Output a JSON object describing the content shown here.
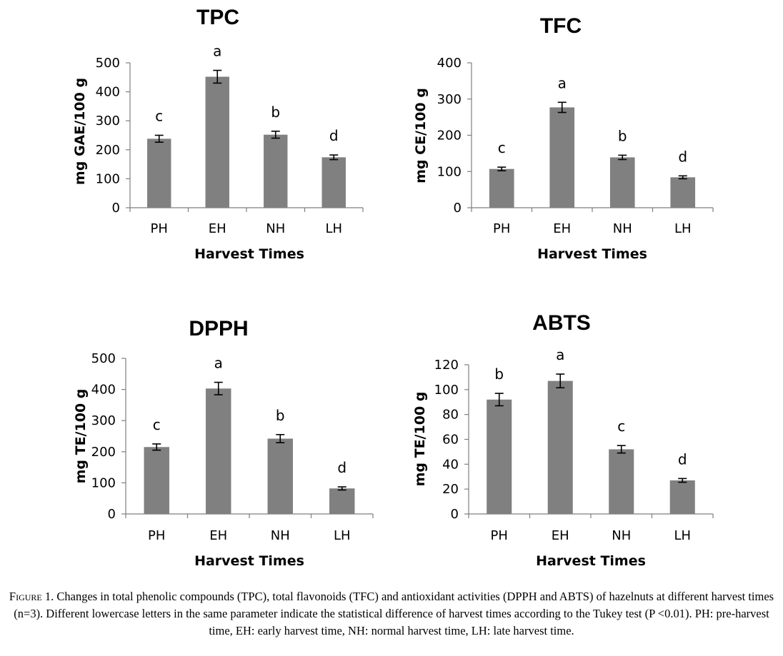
{
  "chart_data": [
    {
      "type": "bar",
      "title": "TPC",
      "xlabel": "Harvest Times",
      "ylabel": "mg GAE/100 g",
      "categories": [
        "PH",
        "EH",
        "NH",
        "LH"
      ],
      "values": [
        238,
        452,
        252,
        174
      ],
      "errors": [
        12,
        22,
        12,
        8
      ],
      "letters": [
        "c",
        "a",
        "b",
        "d"
      ],
      "ylim": [
        0,
        500
      ],
      "yticks": [
        0,
        100,
        200,
        300,
        400,
        500
      ]
    },
    {
      "type": "bar",
      "title": "TFC",
      "xlabel": "Harvest Times",
      "ylabel": "mg CE/100 g",
      "categories": [
        "PH",
        "EH",
        "NH",
        "LH"
      ],
      "values": [
        107,
        277,
        139,
        84
      ],
      "errors": [
        5,
        14,
        6,
        4
      ],
      "letters": [
        "c",
        "a",
        "b",
        "d"
      ],
      "ylim": [
        0,
        400
      ],
      "yticks": [
        0,
        100,
        200,
        300,
        400
      ]
    },
    {
      "type": "bar",
      "title": "DPPH",
      "xlabel": "Harvest Times",
      "ylabel": "mg TE/100 g",
      "categories": [
        "PH",
        "EH",
        "NH",
        "LH"
      ],
      "values": [
        215,
        403,
        242,
        82
      ],
      "errors": [
        10,
        20,
        13,
        5
      ],
      "letters": [
        "c",
        "a",
        "b",
        "d"
      ],
      "ylim": [
        0,
        500
      ],
      "yticks": [
        0,
        100,
        200,
        300,
        400,
        500
      ]
    },
    {
      "type": "bar",
      "title": "ABTS",
      "xlabel": "Harvest Times",
      "ylabel": "mg TE/100 g",
      "categories": [
        "PH",
        "EH",
        "NH",
        "LH"
      ],
      "values": [
        92,
        107,
        52,
        27
      ],
      "errors": [
        5,
        5.5,
        3,
        1.5
      ],
      "letters": [
        "b",
        "a",
        "c",
        "d"
      ],
      "ylim": [
        0,
        120
      ],
      "yticks": [
        0,
        20,
        40,
        60,
        80,
        100,
        120
      ]
    }
  ],
  "caption": {
    "label": "Figure 1",
    "text": ". Changes in total phenolic compounds (TPC), total flavonoids (TFC) and antioxidant activities (DPPH and ABTS) of hazelnuts at different harvest times (n=3). Different lowercase letters in the same parameter indicate the statistical difference of harvest times according to the Tukey test (P <0.01). PH: pre-harvest time, EH: early harvest time, NH: normal harvest time, LH: late harvest time."
  },
  "colors": {
    "bar": "#808080",
    "axis": "#7f7f7f",
    "error_bar": "#000000"
  }
}
